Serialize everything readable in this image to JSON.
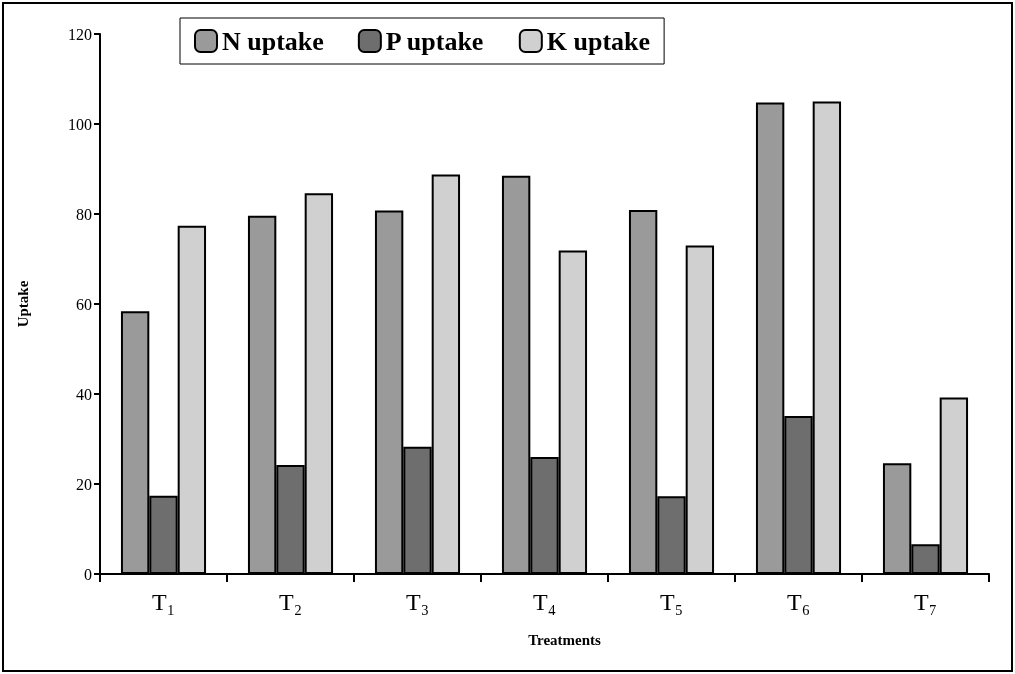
{
  "chart_data": {
    "type": "bar",
    "xlabel": "Treatments",
    "ylabel": "Uptake",
    "categories": [
      "T₁",
      "T₂",
      "T₃",
      "T₄",
      "T₅",
      "T₆",
      "T₇"
    ],
    "series": [
      {
        "name": "N uptake",
        "color": "#9a9a9a",
        "values": [
          58.4,
          79.6,
          80.8,
          88.5,
          80.9,
          104.8,
          24.6
        ]
      },
      {
        "name": "P uptake",
        "color": "#6e6e6e",
        "values": [
          17.4,
          24.2,
          28.3,
          26.0,
          17.3,
          35.1,
          6.6
        ]
      },
      {
        "name": "K uptake",
        "color": "#d0d0d0",
        "values": [
          77.4,
          84.6,
          88.8,
          71.9,
          73.0,
          105.0,
          39.2
        ]
      }
    ],
    "ylim": [
      0,
      120
    ],
    "yticks": [
      0,
      20,
      40,
      60,
      80,
      100,
      120
    ],
    "grid": false,
    "legend": "top left"
  }
}
